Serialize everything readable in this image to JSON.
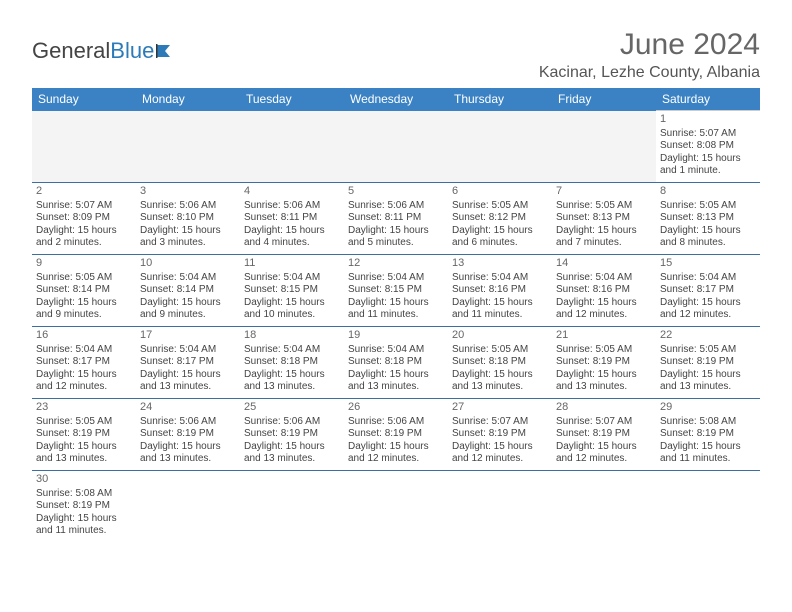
{
  "logo": {
    "part1": "General",
    "part2": "Blue"
  },
  "title": "June 2024",
  "location": "Kacinar, Lezhe County, Albania",
  "header_bg": "#3b82c4",
  "divider_color": "#3b6fa0",
  "dayNames": [
    "Sunday",
    "Monday",
    "Tuesday",
    "Wednesday",
    "Thursday",
    "Friday",
    "Saturday"
  ],
  "weeks": [
    [
      null,
      null,
      null,
      null,
      null,
      null,
      {
        "n": "1",
        "sr": "Sunrise: 5:07 AM",
        "ss": "Sunset: 8:08 PM",
        "dl": "Daylight: 15 hours and 1 minute."
      }
    ],
    [
      {
        "n": "2",
        "sr": "Sunrise: 5:07 AM",
        "ss": "Sunset: 8:09 PM",
        "dl": "Daylight: 15 hours and 2 minutes."
      },
      {
        "n": "3",
        "sr": "Sunrise: 5:06 AM",
        "ss": "Sunset: 8:10 PM",
        "dl": "Daylight: 15 hours and 3 minutes."
      },
      {
        "n": "4",
        "sr": "Sunrise: 5:06 AM",
        "ss": "Sunset: 8:11 PM",
        "dl": "Daylight: 15 hours and 4 minutes."
      },
      {
        "n": "5",
        "sr": "Sunrise: 5:06 AM",
        "ss": "Sunset: 8:11 PM",
        "dl": "Daylight: 15 hours and 5 minutes."
      },
      {
        "n": "6",
        "sr": "Sunrise: 5:05 AM",
        "ss": "Sunset: 8:12 PM",
        "dl": "Daylight: 15 hours and 6 minutes."
      },
      {
        "n": "7",
        "sr": "Sunrise: 5:05 AM",
        "ss": "Sunset: 8:13 PM",
        "dl": "Daylight: 15 hours and 7 minutes."
      },
      {
        "n": "8",
        "sr": "Sunrise: 5:05 AM",
        "ss": "Sunset: 8:13 PM",
        "dl": "Daylight: 15 hours and 8 minutes."
      }
    ],
    [
      {
        "n": "9",
        "sr": "Sunrise: 5:05 AM",
        "ss": "Sunset: 8:14 PM",
        "dl": "Daylight: 15 hours and 9 minutes."
      },
      {
        "n": "10",
        "sr": "Sunrise: 5:04 AM",
        "ss": "Sunset: 8:14 PM",
        "dl": "Daylight: 15 hours and 9 minutes."
      },
      {
        "n": "11",
        "sr": "Sunrise: 5:04 AM",
        "ss": "Sunset: 8:15 PM",
        "dl": "Daylight: 15 hours and 10 minutes."
      },
      {
        "n": "12",
        "sr": "Sunrise: 5:04 AM",
        "ss": "Sunset: 8:15 PM",
        "dl": "Daylight: 15 hours and 11 minutes."
      },
      {
        "n": "13",
        "sr": "Sunrise: 5:04 AM",
        "ss": "Sunset: 8:16 PM",
        "dl": "Daylight: 15 hours and 11 minutes."
      },
      {
        "n": "14",
        "sr": "Sunrise: 5:04 AM",
        "ss": "Sunset: 8:16 PM",
        "dl": "Daylight: 15 hours and 12 minutes."
      },
      {
        "n": "15",
        "sr": "Sunrise: 5:04 AM",
        "ss": "Sunset: 8:17 PM",
        "dl": "Daylight: 15 hours and 12 minutes."
      }
    ],
    [
      {
        "n": "16",
        "sr": "Sunrise: 5:04 AM",
        "ss": "Sunset: 8:17 PM",
        "dl": "Daylight: 15 hours and 12 minutes."
      },
      {
        "n": "17",
        "sr": "Sunrise: 5:04 AM",
        "ss": "Sunset: 8:17 PM",
        "dl": "Daylight: 15 hours and 13 minutes."
      },
      {
        "n": "18",
        "sr": "Sunrise: 5:04 AM",
        "ss": "Sunset: 8:18 PM",
        "dl": "Daylight: 15 hours and 13 minutes."
      },
      {
        "n": "19",
        "sr": "Sunrise: 5:04 AM",
        "ss": "Sunset: 8:18 PM",
        "dl": "Daylight: 15 hours and 13 minutes."
      },
      {
        "n": "20",
        "sr": "Sunrise: 5:05 AM",
        "ss": "Sunset: 8:18 PM",
        "dl": "Daylight: 15 hours and 13 minutes."
      },
      {
        "n": "21",
        "sr": "Sunrise: 5:05 AM",
        "ss": "Sunset: 8:19 PM",
        "dl": "Daylight: 15 hours and 13 minutes."
      },
      {
        "n": "22",
        "sr": "Sunrise: 5:05 AM",
        "ss": "Sunset: 8:19 PM",
        "dl": "Daylight: 15 hours and 13 minutes."
      }
    ],
    [
      {
        "n": "23",
        "sr": "Sunrise: 5:05 AM",
        "ss": "Sunset: 8:19 PM",
        "dl": "Daylight: 15 hours and 13 minutes."
      },
      {
        "n": "24",
        "sr": "Sunrise: 5:06 AM",
        "ss": "Sunset: 8:19 PM",
        "dl": "Daylight: 15 hours and 13 minutes."
      },
      {
        "n": "25",
        "sr": "Sunrise: 5:06 AM",
        "ss": "Sunset: 8:19 PM",
        "dl": "Daylight: 15 hours and 13 minutes."
      },
      {
        "n": "26",
        "sr": "Sunrise: 5:06 AM",
        "ss": "Sunset: 8:19 PM",
        "dl": "Daylight: 15 hours and 12 minutes."
      },
      {
        "n": "27",
        "sr": "Sunrise: 5:07 AM",
        "ss": "Sunset: 8:19 PM",
        "dl": "Daylight: 15 hours and 12 minutes."
      },
      {
        "n": "28",
        "sr": "Sunrise: 5:07 AM",
        "ss": "Sunset: 8:19 PM",
        "dl": "Daylight: 15 hours and 12 minutes."
      },
      {
        "n": "29",
        "sr": "Sunrise: 5:08 AM",
        "ss": "Sunset: 8:19 PM",
        "dl": "Daylight: 15 hours and 11 minutes."
      }
    ],
    [
      {
        "n": "30",
        "sr": "Sunrise: 5:08 AM",
        "ss": "Sunset: 8:19 PM",
        "dl": "Daylight: 15 hours and 11 minutes."
      },
      null,
      null,
      null,
      null,
      null,
      null
    ]
  ]
}
